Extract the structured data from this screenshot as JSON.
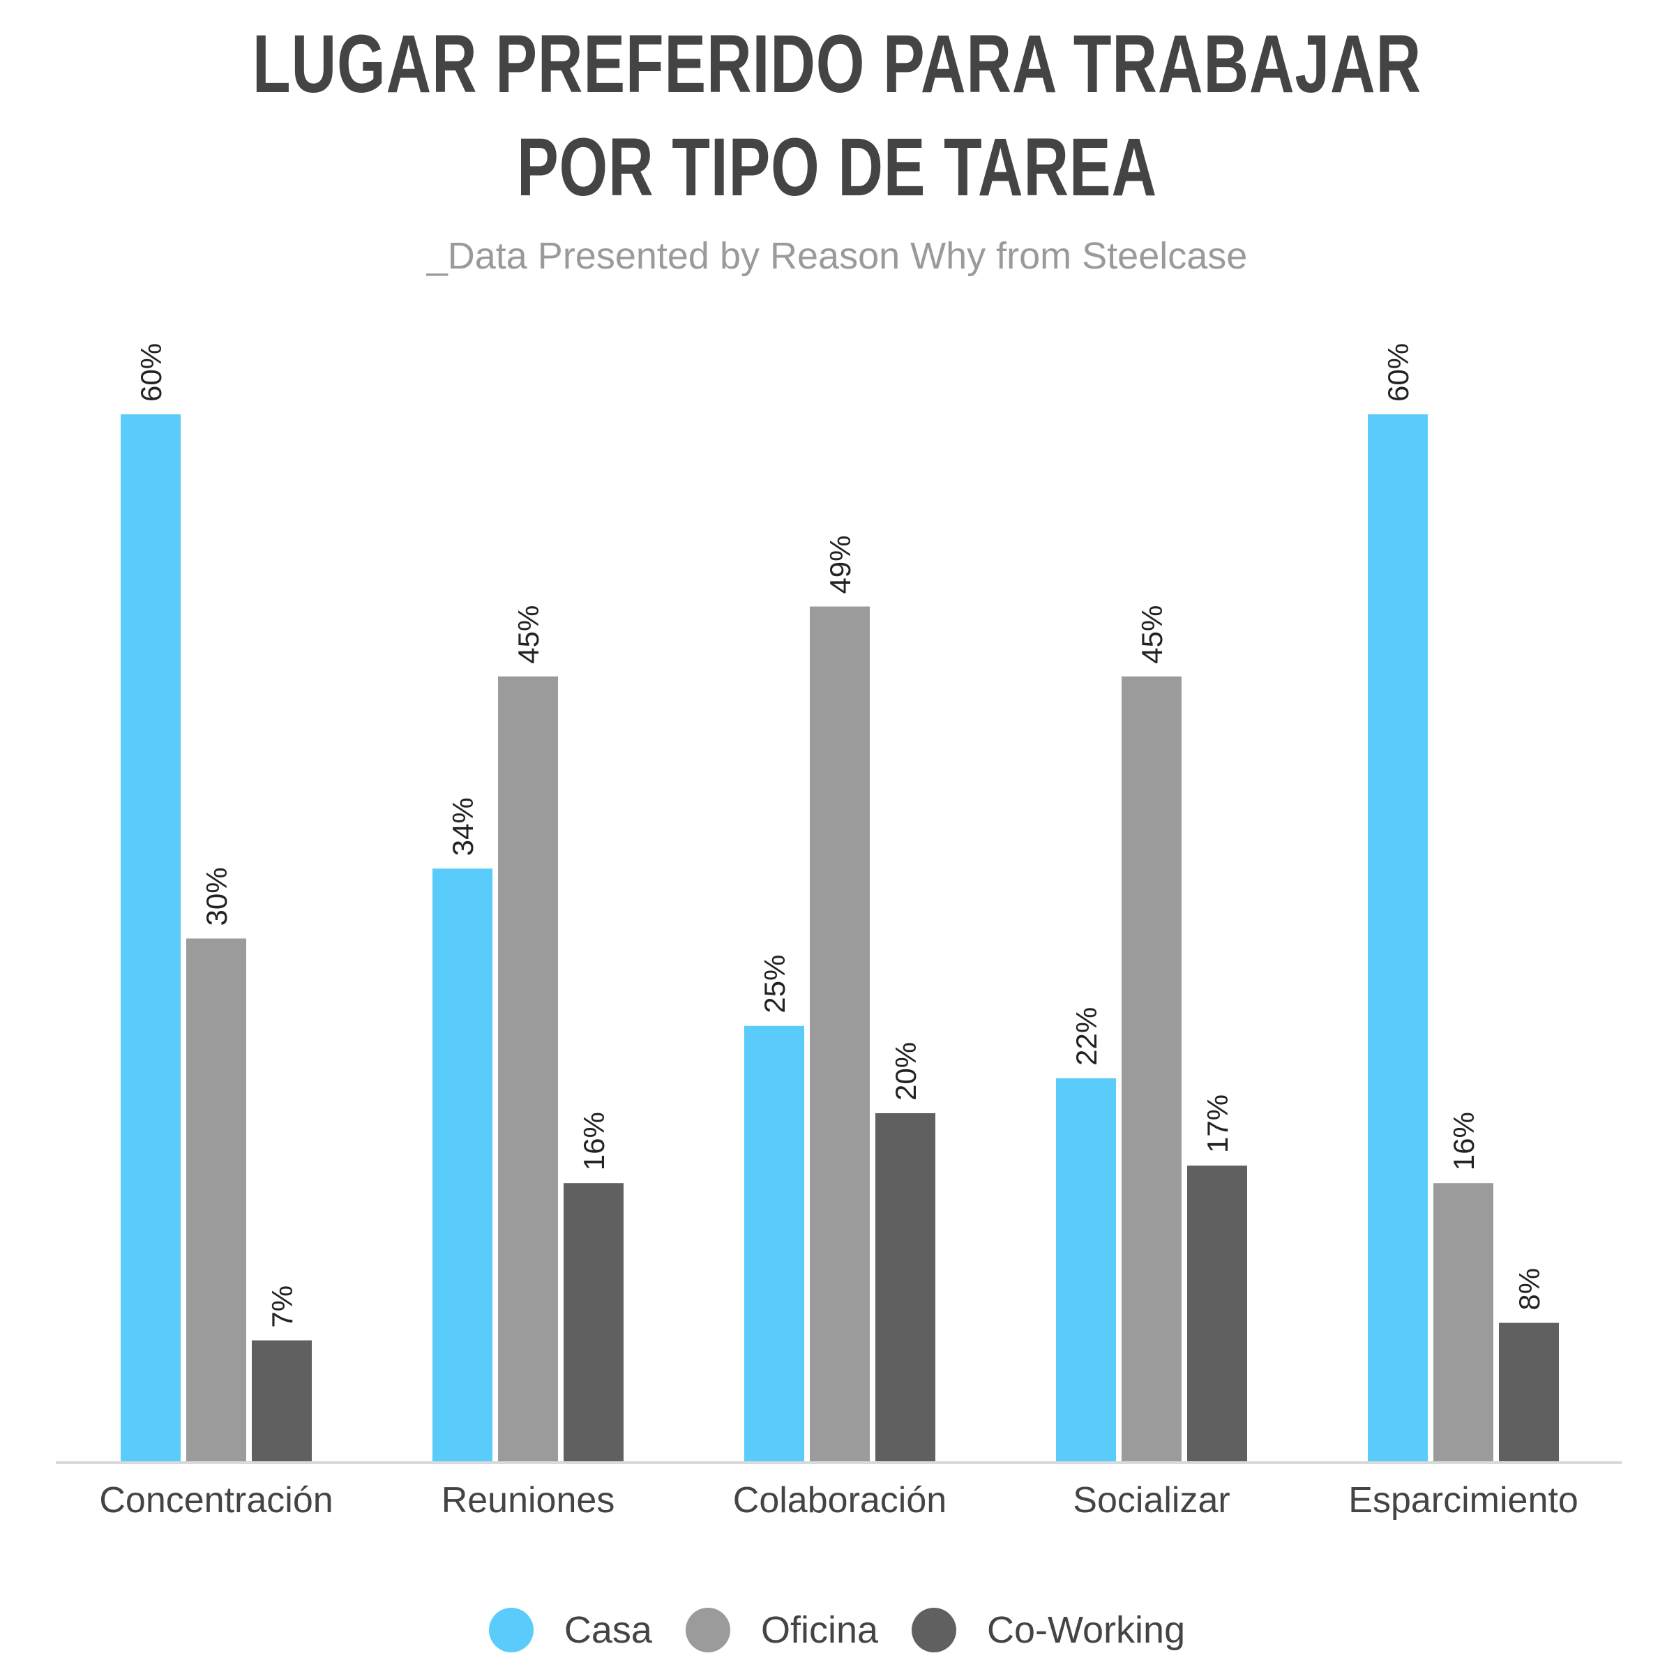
{
  "title_lines": [
    "LUGAR PREFERIDO PARA TRABAJAR",
    "POR TIPO DE TAREA"
  ],
  "subtitle": "_Data Presented by Reason Why from Steelcase",
  "colors": {
    "Casa": "#5accfb",
    "Oficina": "#9b9b9b",
    "Co-Working": "#606060",
    "axis": "#d9d9d9",
    "label": "#222222",
    "category": "#444444"
  },
  "chart_data": {
    "type": "bar",
    "title": "LUGAR PREFERIDO PARA TRABAJAR POR TIPO DE TAREA",
    "subtitle": "_Data Presented by Reason Why from Steelcase",
    "categories": [
      "Concentración",
      "Reuniones",
      "Colaboración",
      "Socializar",
      "Esparcimiento"
    ],
    "series": [
      {
        "name": "Casa",
        "values": [
          60,
          34,
          25,
          22,
          60
        ]
      },
      {
        "name": "Oficina",
        "values": [
          30,
          45,
          49,
          45,
          16
        ]
      },
      {
        "name": "Co-Working",
        "values": [
          7,
          16,
          20,
          17,
          8
        ]
      }
    ],
    "value_suffix": "%",
    "ylim": [
      0,
      60
    ],
    "grid": false,
    "legend_position": "bottom-center",
    "xlabel": "",
    "ylabel": ""
  },
  "legend": [
    {
      "label": "Casa",
      "color": "#5accfb"
    },
    {
      "label": "Oficina",
      "color": "#9b9b9b"
    },
    {
      "label": "Co-Working",
      "color": "#606060"
    }
  ]
}
